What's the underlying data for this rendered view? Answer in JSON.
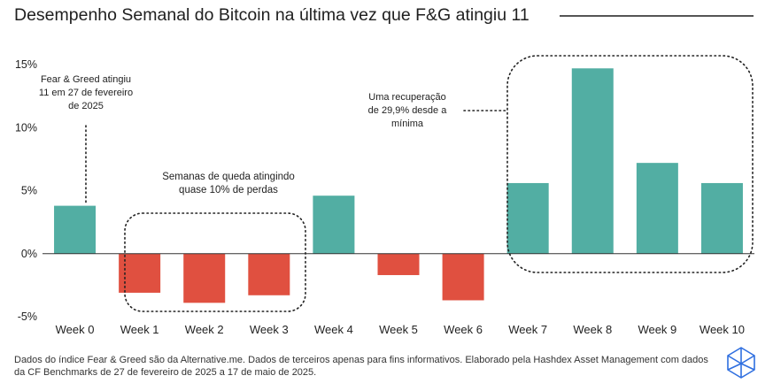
{
  "title": "Desempenho Semanal do Bitcoin na última vez que F&G atingiu 11",
  "chart_data": {
    "type": "bar",
    "categories": [
      "Week 0",
      "Week 1",
      "Week 2",
      "Week 3",
      "Week 4",
      "Week 5",
      "Week 6",
      "Week 7",
      "Week 8",
      "Week 9",
      "Week 10"
    ],
    "values": [
      3.8,
      -3.1,
      -3.9,
      -3.3,
      4.6,
      -1.7,
      -3.7,
      5.6,
      14.7,
      7.2,
      5.6
    ],
    "y_ticks": [
      "15%",
      "10%",
      "5%",
      "0%",
      "-5%"
    ],
    "ylim": [
      -5,
      15
    ],
    "colors": {
      "positive": "#52aea3",
      "negative": "#e05040"
    },
    "annotations": {
      "fg": [
        "Fear & Greed atingiu",
        "11 em 27 de fevereiro",
        "de 2025"
      ],
      "drop": [
        "Semanas de queda atingindo",
        "quase 10% de perdas"
      ],
      "recovery": [
        "Uma recuperação",
        "de 29,9% desde a",
        "mínima"
      ]
    }
  },
  "footnote": "Dados do índice Fear & Greed são da Alternative.me. Dados de terceiros apenas para fins informativos. Elaborado pela Hashdex Asset Management com dados da CF Benchmarks de 27 de fevereiro de 2025 a 17 de maio de 2025.",
  "logo_icon": "hashdex-logo-icon"
}
